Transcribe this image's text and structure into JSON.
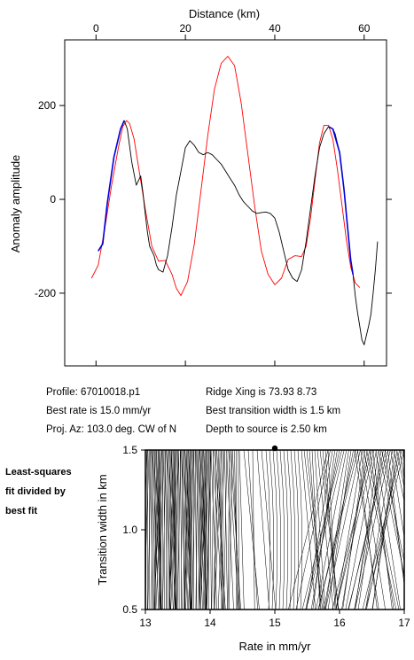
{
  "top_chart": {
    "chart_data": {
      "type": "line",
      "xlabel": "Distance (km)",
      "ylabel": "Anomaly amplitude",
      "xlim": [
        -7,
        65
      ],
      "ylim": [
        -355,
        340
      ],
      "xticks": [
        0,
        20,
        40,
        60
      ],
      "yticks": [
        200,
        0,
        -200
      ],
      "series": [
        {
          "color": "#ff0000",
          "x": [
            -1,
            0.5,
            2,
            3.5,
            5,
            6,
            6.8,
            7.5,
            8.5,
            9.5,
            11,
            12.5,
            14,
            15.5,
            17,
            18,
            19,
            20.5,
            22,
            23.5,
            25,
            26.5,
            28,
            29.5,
            31,
            32.5,
            34,
            35.5,
            37,
            38.5,
            40,
            41.5,
            43,
            44.5,
            46,
            47,
            48,
            49,
            50,
            51,
            52,
            53,
            54,
            55,
            56,
            57,
            58,
            59
          ],
          "y": [
            -168,
            -140,
            -60,
            30,
            110,
            155,
            168,
            162,
            130,
            70,
            -20,
            -100,
            -132,
            -130,
            -160,
            -190,
            -205,
            -175,
            -95,
            20,
            135,
            235,
            290,
            305,
            285,
            205,
            95,
            -15,
            -110,
            -160,
            -182,
            -168,
            -128,
            -120,
            -122,
            -100,
            -40,
            40,
            120,
            158,
            158,
            128,
            65,
            -10,
            -85,
            -145,
            -178,
            -188
          ]
        },
        {
          "color": "#000000",
          "x": [
            0.5,
            1.5,
            2.5,
            4,
            5.5,
            6.3,
            7,
            8,
            9,
            10,
            10.5,
            11,
            11.5,
            12,
            12.5,
            13,
            13.5,
            14,
            15,
            16,
            17,
            18,
            19,
            20,
            21,
            22,
            23,
            24,
            25,
            26,
            27,
            28,
            29,
            30,
            31,
            32,
            33,
            34,
            35,
            36,
            37,
            38,
            39,
            40,
            41,
            42,
            43,
            44,
            45,
            46,
            47,
            48,
            49,
            50,
            51,
            52,
            53,
            53.5,
            54.5,
            55.5,
            56.5,
            57,
            57.5,
            58,
            58.5,
            59,
            59.5,
            60,
            60.5,
            61,
            61.5,
            62,
            62.5,
            63
          ],
          "y": [
            -110,
            -95,
            -10,
            90,
            150,
            168,
            150,
            80,
            30,
            50,
            15,
            -30,
            -70,
            -100,
            -110,
            -120,
            -140,
            -150,
            -155,
            -120,
            -60,
            10,
            60,
            110,
            125,
            115,
            100,
            95,
            100,
            95,
            85,
            75,
            60,
            45,
            30,
            10,
            -5,
            -15,
            -25,
            -30,
            -28,
            -27,
            -30,
            -40,
            -70,
            -110,
            -150,
            -168,
            -175,
            -150,
            -90,
            -20,
            50,
            110,
            140,
            155,
            150,
            140,
            100,
            20,
            -80,
            -130,
            -160,
            -205,
            -240,
            -270,
            -300,
            -310,
            -290,
            -270,
            -245,
            -200,
            -150,
            -90
          ]
        },
        {
          "color": "#0000dd",
          "x": [
            0.5,
            1.5,
            2.5,
            4,
            5.5,
            6.3
          ],
          "y": [
            -110,
            -95,
            -10,
            90,
            150,
            168
          ]
        },
        {
          "color": "#0000dd",
          "x": [
            52,
            53,
            54.5,
            55.5,
            56.5,
            57,
            57.5
          ],
          "y": [
            155,
            150,
            100,
            20,
            -80,
            -130,
            -160
          ]
        }
      ]
    }
  },
  "info": {
    "profile": "Profile: 67010018.p1",
    "best_rate": "Best rate is 15.0 mm/yr",
    "proj_az": "Proj. Az: 103.0 deg. CW of N",
    "ridge_xing": "Ridge Xing is 73.93 8.73",
    "best_width": "Best transition width is 1.5 km",
    "depth": "Depth to source is    2.50 km"
  },
  "side_label": {
    "line1": "Least-squares",
    "line2": "fit divided by",
    "line3": "best fit"
  },
  "bottom_chart": {
    "chart_data": {
      "type": "heatmap",
      "xlabel": "Rate in mm/yr",
      "ylabel": "Transition width in km",
      "xlim": [
        13,
        17
      ],
      "ylim": [
        0.5,
        1.5
      ],
      "xticks": [
        13,
        14,
        15,
        16,
        17
      ],
      "yticks": [
        1.5,
        1.0,
        0.5
      ],
      "best_point": {
        "x": 15.0,
        "y": 1.5
      }
    }
  }
}
